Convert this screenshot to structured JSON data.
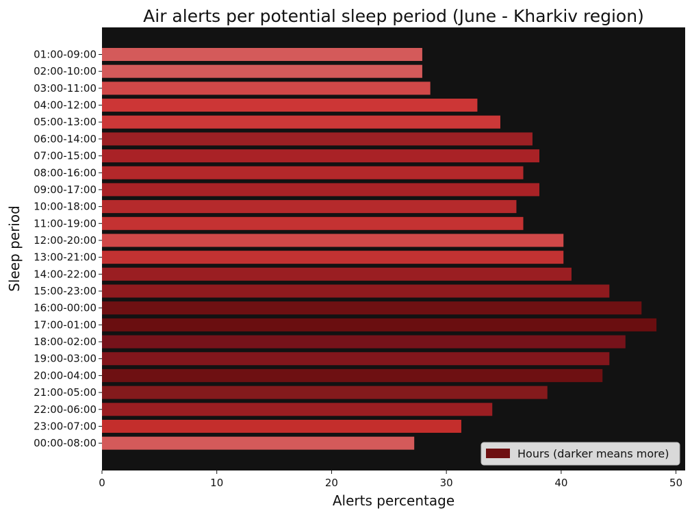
{
  "chart_data": {
    "type": "bar",
    "orientation": "horizontal",
    "title": "Air alerts per potential sleep period (June - Kharkiv region)",
    "xlabel": "Alerts percentage",
    "ylabel": "Sleep period",
    "xlim": [
      0,
      50.8
    ],
    "xticks": [
      0,
      10,
      20,
      30,
      40,
      50
    ],
    "categories": [
      "01:00-09:00",
      "02:00-10:00",
      "03:00-11:00",
      "04:00-12:00",
      "05:00-13:00",
      "06:00-14:00",
      "07:00-15:00",
      "08:00-16:00",
      "09:00-17:00",
      "10:00-18:00",
      "11:00-19:00",
      "12:00-20:00",
      "13:00-21:00",
      "14:00-22:00",
      "15:00-23:00",
      "16:00-00:00",
      "17:00-01:00",
      "18:00-02:00",
      "19:00-03:00",
      "20:00-04:00",
      "21:00-05:00",
      "22:00-06:00",
      "23:00-07:00",
      "00:00-08:00"
    ],
    "values": [
      27.9,
      27.9,
      28.6,
      32.7,
      34.7,
      37.5,
      38.1,
      36.7,
      38.1,
      36.1,
      36.7,
      40.2,
      40.2,
      40.9,
      44.2,
      47.0,
      48.3,
      45.6,
      44.2,
      43.6,
      38.8,
      34.0,
      31.3,
      27.2
    ],
    "colors": [
      "#d45a5a",
      "#d45a5a",
      "#d04848",
      "#cc3636",
      "#cc3838",
      "#9c2024",
      "#a92226",
      "#b3282a",
      "#a92226",
      "#b52a2c",
      "#c43232",
      "#d04848",
      "#c23232",
      "#9a1e22",
      "#8f1a1e",
      "#6e1012",
      "#6a0e10",
      "#76121a",
      "#82161c",
      "#6e1012",
      "#841a1c",
      "#9a1e22",
      "#c42e2c",
      "#d45a5a"
    ],
    "plot_background": "#121212",
    "grid": false,
    "legend": {
      "label": "Hours (darker means more)",
      "swatch_color": "#6e1012",
      "placement": "lower-right"
    }
  }
}
